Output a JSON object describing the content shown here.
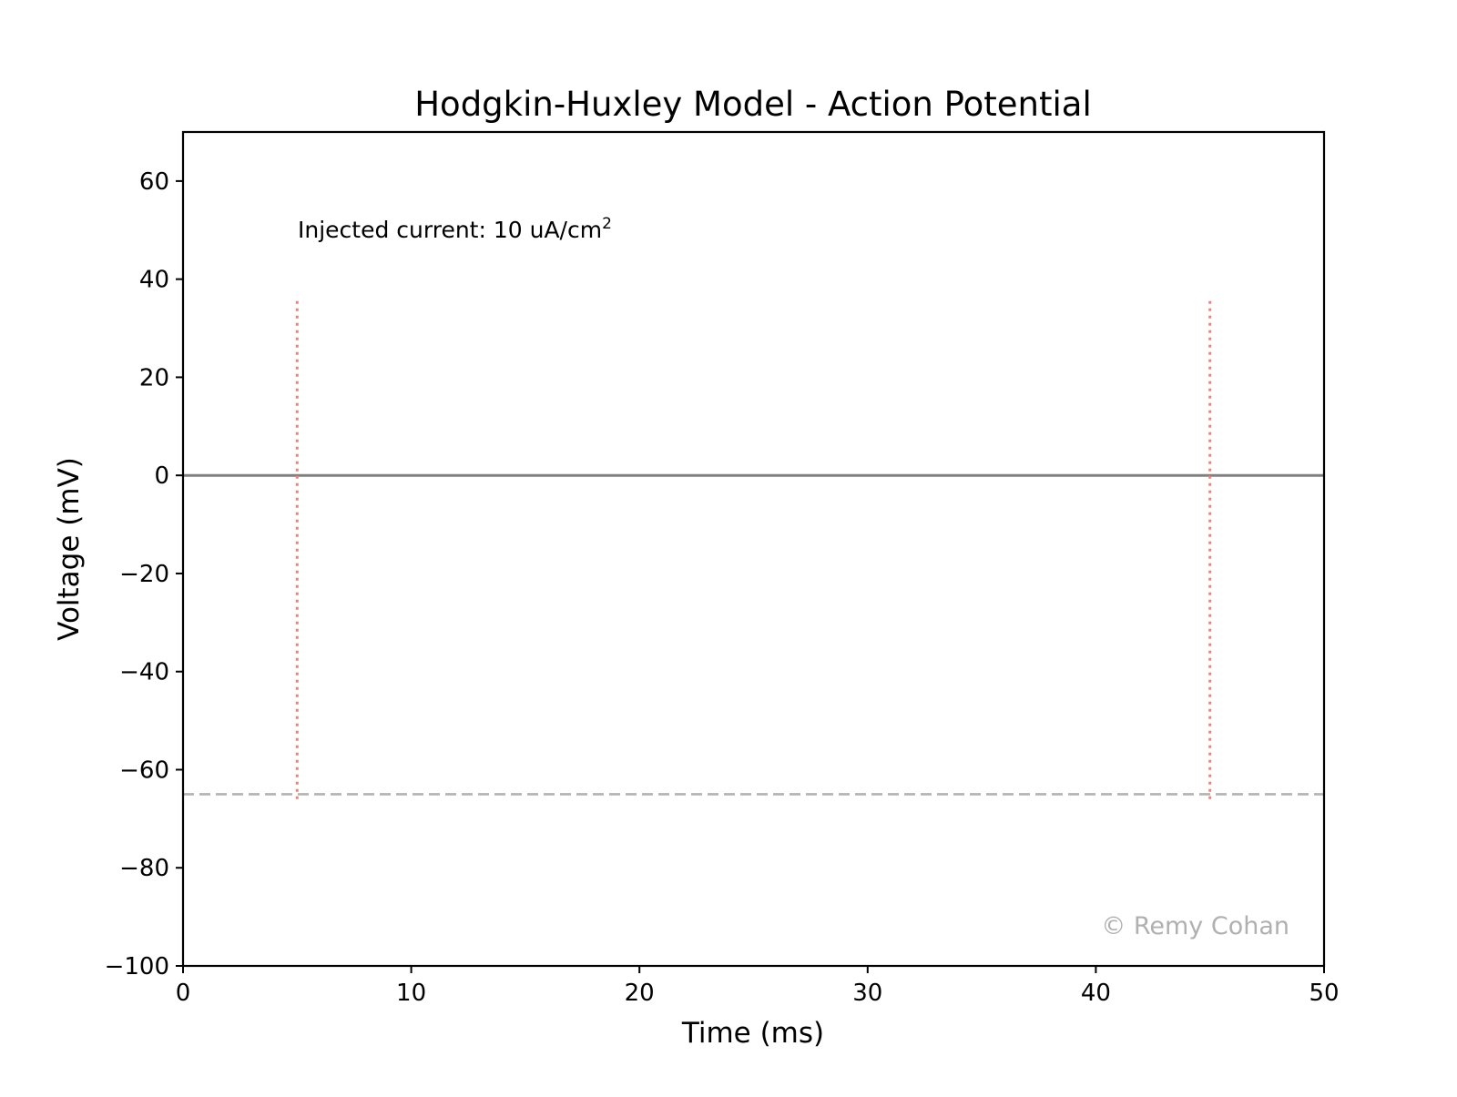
{
  "chart_data": {
    "type": "line",
    "title": "Hodgkin-Huxley Model - Action Potential",
    "xlabel": "Time (ms)",
    "ylabel": "Voltage (mV)",
    "xlim": [
      0,
      50
    ],
    "ylim": [
      -100,
      70
    ],
    "x_ticks": [
      0,
      10,
      20,
      30,
      40,
      50
    ],
    "x_tick_labels": [
      "0",
      "10",
      "20",
      "30",
      "40",
      "50"
    ],
    "y_ticks": [
      -100,
      -80,
      -60,
      -40,
      -20,
      0,
      20,
      40,
      60
    ],
    "y_tick_labels": [
      "−100",
      "−80",
      "−60",
      "−40",
      "−20",
      "0",
      "20",
      "40",
      "60"
    ],
    "grid": false,
    "series": [
      {
        "x": [
          0,
          50
        ],
        "y": [
          0,
          0
        ],
        "color": "#808080",
        "style": "solid"
      }
    ],
    "reference_lines": [
      {
        "orientation": "horizontal",
        "value": -65,
        "color": "#b3b3b3",
        "style": "dashed"
      },
      {
        "orientation": "vertical",
        "value": 5,
        "range": [
          -66,
          36
        ],
        "color": "#ff7a7a",
        "style": "dotted"
      },
      {
        "orientation": "vertical",
        "value": 45,
        "range": [
          -66,
          36
        ],
        "color": "#ff7a7a",
        "style": "dotted"
      }
    ],
    "annotations": [
      {
        "text": "Injected current: 10 uA/cm",
        "superscript": "2",
        "x": 5,
        "y": 49
      }
    ],
    "watermark": {
      "text": "© Remy Cohan",
      "color": "#b0b0b0"
    }
  }
}
